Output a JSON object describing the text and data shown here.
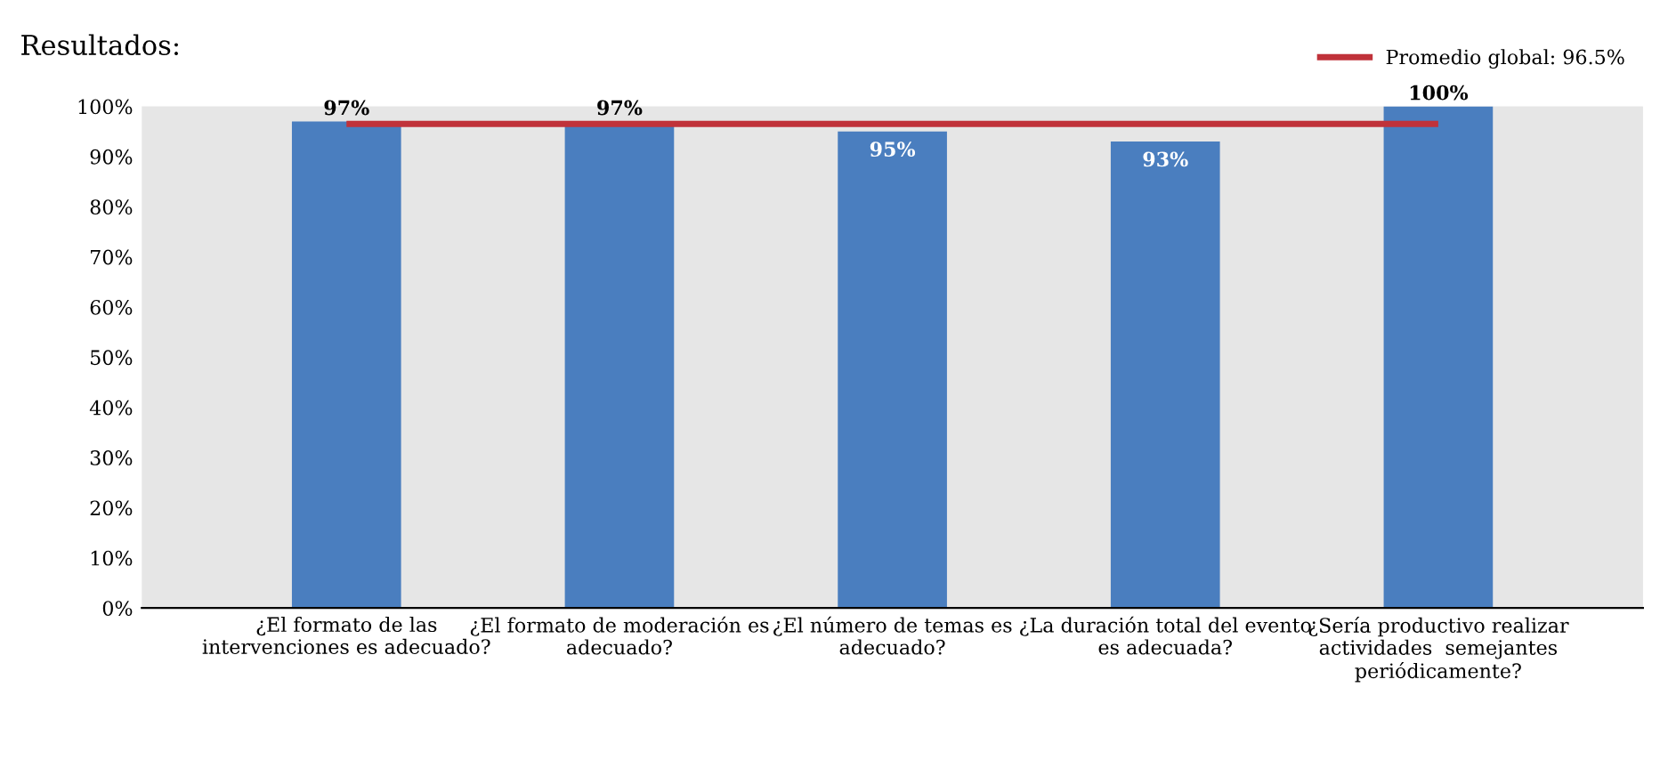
{
  "chart_data": {
    "type": "bar",
    "title": "Resultados:",
    "categories": [
      "¿El formato de las\nintervenciones es adecuado?",
      "¿El formato de moderación es\nadecuado?",
      "¿El número de temas es\nadecuado?",
      "¿La duración total del evento\nes adecuada?",
      "¿Sería productivo realizar\nactividades  semejantes\nperiódicamente?"
    ],
    "values": [
      97,
      97,
      95,
      93,
      100
    ],
    "value_labels": [
      "97%",
      "97%",
      "95%",
      "93%",
      "100%"
    ],
    "color": "#4a7ebf",
    "ylim": [
      0,
      100
    ],
    "yticks": [
      {
        "value": 0,
        "label": "0%"
      },
      {
        "value": 10,
        "label": "10%"
      },
      {
        "value": 20,
        "label": "20%"
      },
      {
        "value": 30,
        "label": "30%"
      },
      {
        "value": 40,
        "label": "40%"
      },
      {
        "value": 50,
        "label": "50%"
      },
      {
        "value": 60,
        "label": "60%"
      },
      {
        "value": 70,
        "label": "70%"
      },
      {
        "value": 80,
        "label": "80%"
      },
      {
        "value": 90,
        "label": "90%"
      },
      {
        "value": 100,
        "label": "100%"
      }
    ],
    "ref_lines": [
      {
        "axis": "y",
        "value": 96.5,
        "label": "Promedio global: 96.5%",
        "color": "#c0323a"
      }
    ],
    "legend": "top right",
    "grid": false
  }
}
